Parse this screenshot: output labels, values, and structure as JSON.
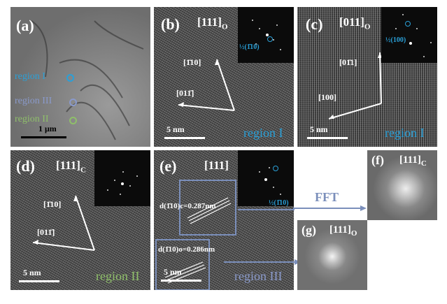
{
  "panels": {
    "a": {
      "label": "(a)",
      "regions": [
        "region I",
        "region III",
        "region II"
      ],
      "scale": "1 μm"
    },
    "b": {
      "label": "(b)",
      "zone": "[111]",
      "zone_sub": "O",
      "dir1": "[1̄10]",
      "dir2": "[011̄]",
      "spot": "½(1̄10)",
      "scale": "5 nm",
      "region": "region I"
    },
    "c": {
      "label": "(c)",
      "zone": "[011]",
      "zone_sub": "O",
      "dir1": "[01̄1]",
      "dir2": "[100]",
      "spot": "½(100)",
      "scale": "5 nm",
      "region": "region I"
    },
    "d": {
      "label": "(d)",
      "zone": "[111]",
      "zone_sub": "C",
      "dir1": "[1̄10]",
      "dir2": "[011̄]",
      "scale": "5 nm",
      "region": "region II"
    },
    "e": {
      "label": "(e)",
      "zone": "[111]",
      "d1": "d(1̄10)c=0.287nm",
      "d2": "d(1̄10)o=0.286nm",
      "spot": "½(1̄10)",
      "scale": "5 nm",
      "region": "region III"
    },
    "f": {
      "label": "(f)",
      "zone": "[111]",
      "zone_sub": "C"
    },
    "g": {
      "label": "(g)",
      "zone": "[111]",
      "zone_sub": "O"
    }
  },
  "fft_label": "FFT",
  "colors": {
    "region1": "#2aa0d8",
    "region2": "#8fbf6a",
    "region3": "#8a9acb",
    "box": "#7b8fbb"
  }
}
